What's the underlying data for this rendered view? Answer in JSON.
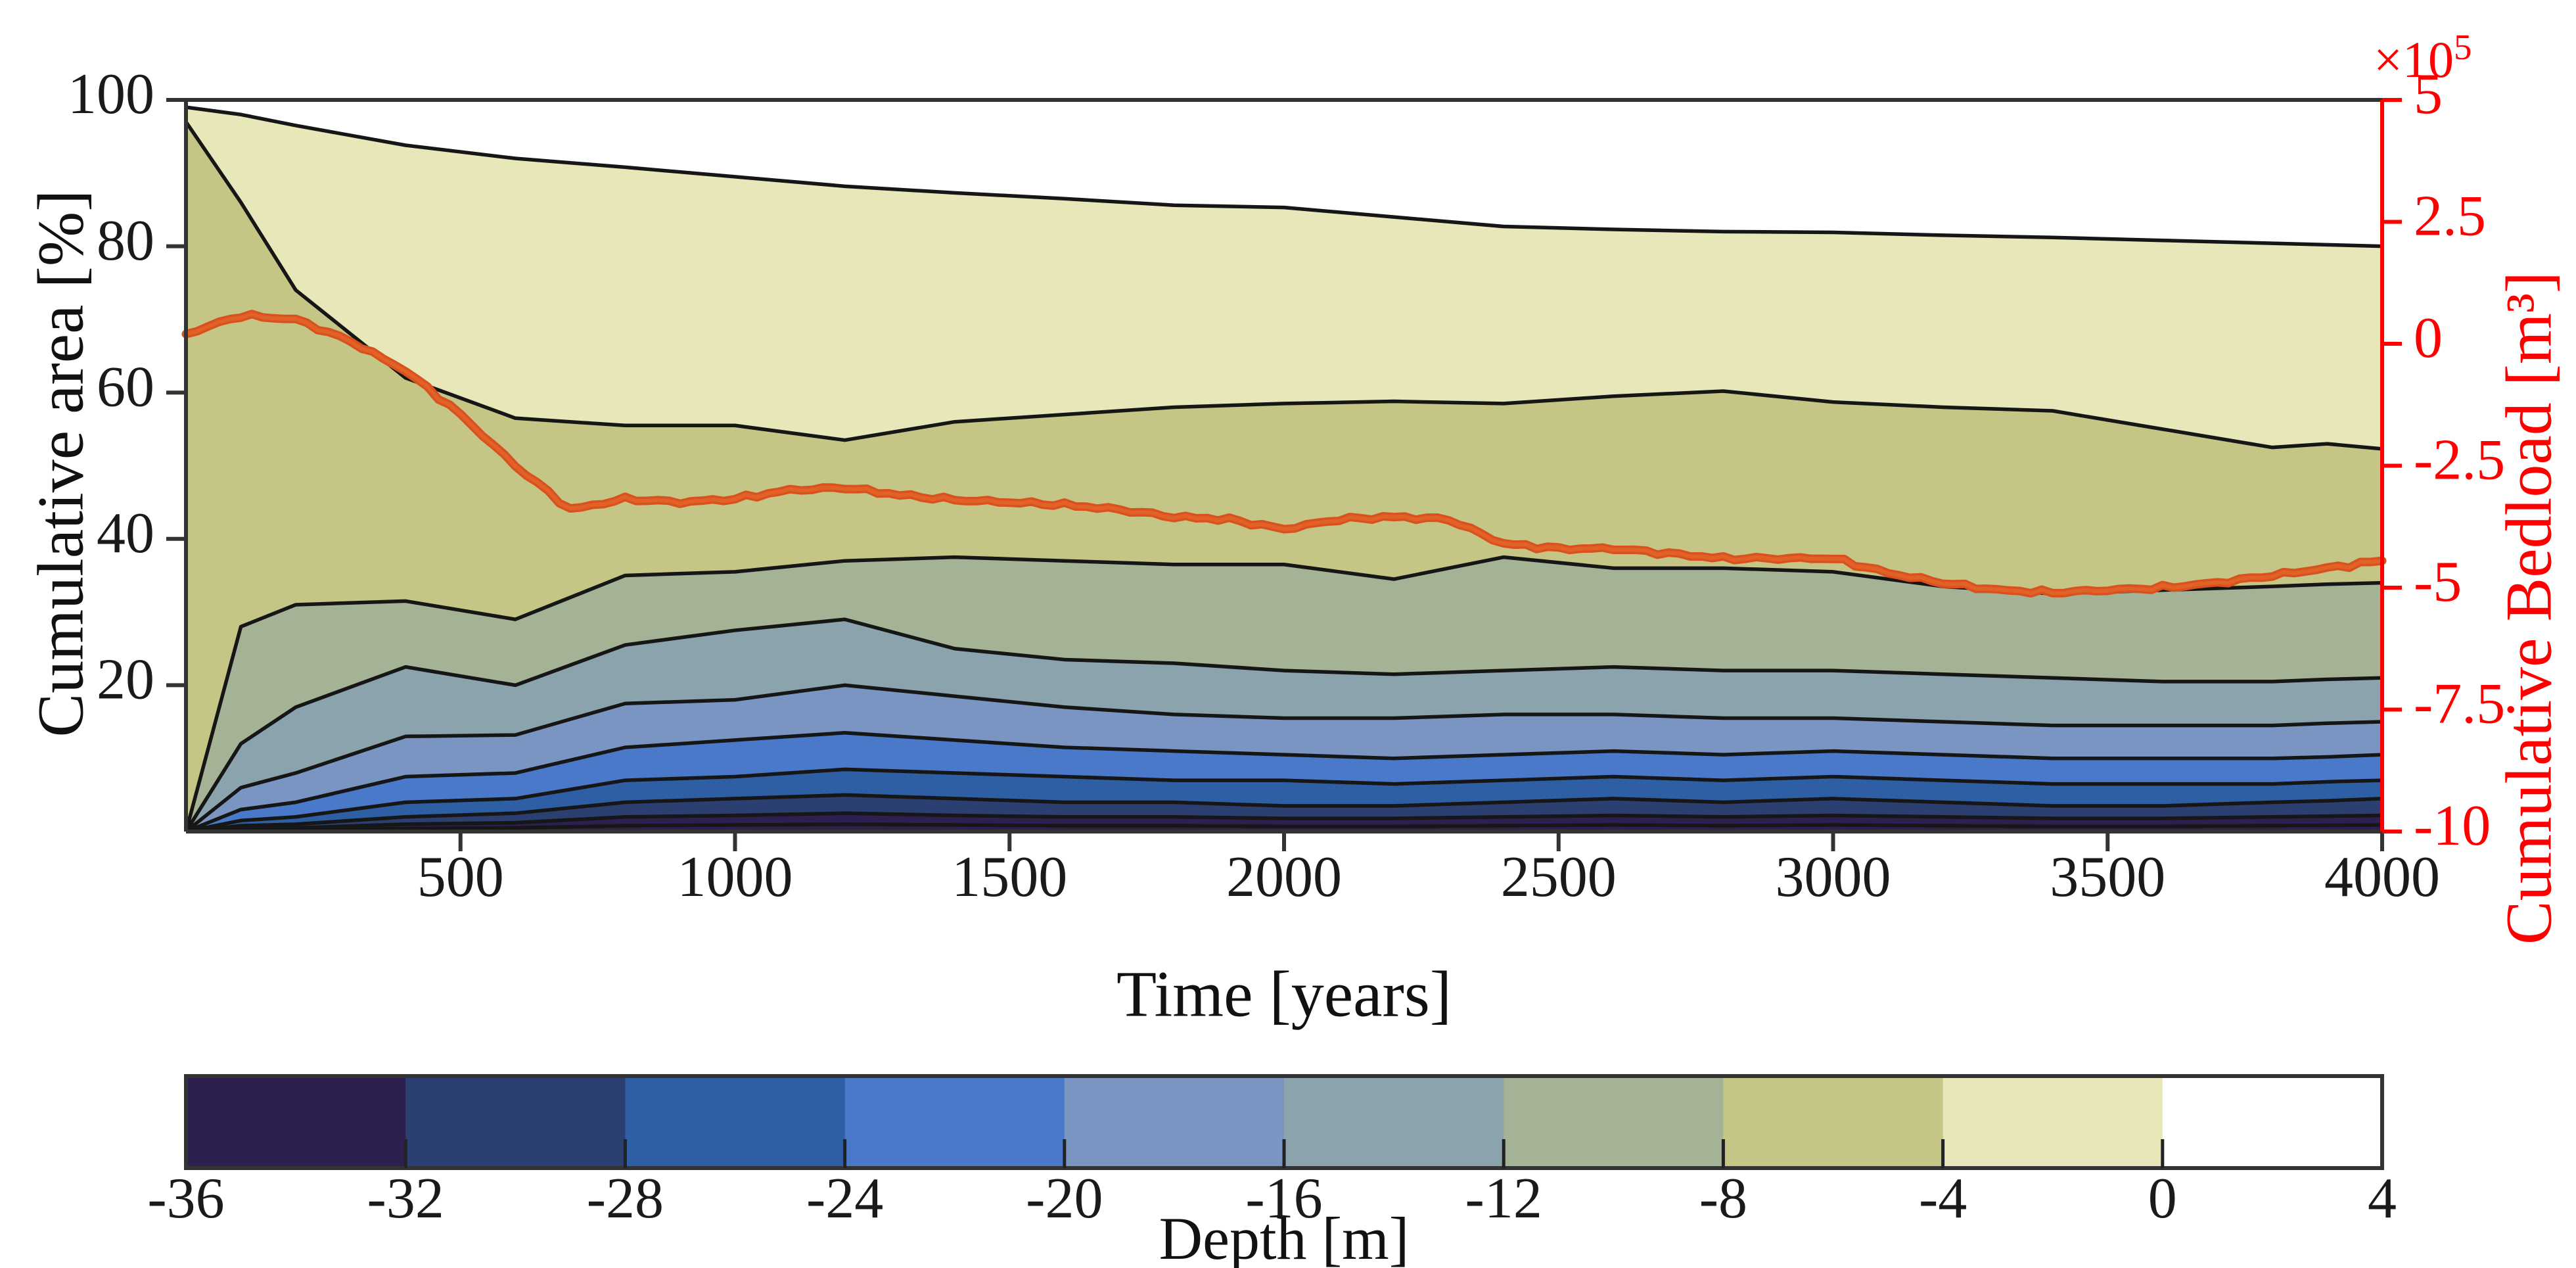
{
  "chart_data": {
    "type": "filled-contour-with-line",
    "title": "",
    "x_axis": {
      "label": "Time [years]",
      "min": 0,
      "max": 4000,
      "ticks": [
        500,
        1000,
        1500,
        2000,
        2500,
        3000,
        3500,
        4000
      ]
    },
    "y_left": {
      "label": "Cumulative area [%]",
      "min": 0,
      "max": 100,
      "ticks": [
        20,
        40,
        60,
        80,
        100
      ],
      "color": "#111111"
    },
    "y_right": {
      "label": "Cumulative Bedload [m³]",
      "multiplier_base": "×10",
      "multiplier_exponent": "5",
      "min": -10,
      "max": 5,
      "ticks": [
        5,
        2.5,
        0,
        -2.5,
        -5,
        -7.5,
        -10
      ],
      "color": "#ff0000"
    },
    "contour": {
      "comment": "cumulative area [%] occupied by lakebed deeper than each depth level, vs time [years]",
      "times": [
        0,
        100,
        200,
        400,
        600,
        800,
        1000,
        1200,
        1400,
        1600,
        1800,
        2000,
        2200,
        2400,
        2600,
        2800,
        3000,
        3200,
        3400,
        3600,
        3800,
        3900,
        4000
      ],
      "levels": [
        {
          "depth": 0,
          "values": [
            99,
            98,
            96.5,
            93.8,
            92,
            90.8,
            89.5,
            88.2,
            87.3,
            86.5,
            85.6,
            85.3,
            84,
            82.7,
            82.3,
            82,
            81.9,
            81.5,
            81.2,
            80.8,
            80.4,
            80.2,
            80
          ]
        },
        {
          "depth": -4,
          "values": [
            97,
            86,
            74,
            62,
            56.5,
            55.5,
            55.5,
            53.5,
            56,
            57,
            58,
            58.5,
            58.8,
            58.5,
            59.5,
            60.2,
            58.7,
            58,
            57.5,
            55,
            52.5,
            53,
            52.3
          ]
        },
        {
          "depth": -8,
          "values": [
            0,
            28,
            31,
            31.5,
            29,
            35,
            35.5,
            37,
            37.5,
            37,
            36.5,
            36.5,
            34.5,
            37.5,
            36,
            36,
            35.5,
            33.5,
            32.5,
            33,
            33.5,
            33.8,
            34
          ]
        },
        {
          "depth": -12,
          "values": [
            0,
            12,
            17,
            22.5,
            20,
            25.5,
            27.5,
            29,
            25,
            23.5,
            23,
            22,
            21.5,
            22,
            22.5,
            22,
            22,
            21.5,
            21,
            20.5,
            20.5,
            20.8,
            21
          ]
        },
        {
          "depth": -16,
          "values": [
            0,
            6,
            8,
            13,
            13.2,
            17.5,
            18,
            20,
            18.5,
            17,
            16,
            15.5,
            15.5,
            16,
            16,
            15.5,
            15.5,
            15,
            14.5,
            14.5,
            14.5,
            14.8,
            15
          ]
        },
        {
          "depth": -20,
          "values": [
            0,
            3,
            4,
            7.5,
            8,
            11.5,
            12.5,
            13.5,
            12.5,
            11.5,
            11,
            10.5,
            10,
            10.5,
            11,
            10.5,
            11,
            10.5,
            10,
            10,
            10,
            10.2,
            10.5
          ]
        },
        {
          "depth": -24,
          "values": [
            0,
            1.5,
            2,
            4,
            4.5,
            7,
            7.5,
            8.5,
            8,
            7.5,
            7,
            7,
            6.5,
            7,
            7.5,
            7,
            7.5,
            7,
            6.5,
            6.5,
            6.5,
            6.8,
            7
          ]
        },
        {
          "depth": -28,
          "values": [
            0,
            0.8,
            1,
            2,
            2.5,
            4,
            4.5,
            5,
            4.5,
            4,
            4,
            3.5,
            3.5,
            4,
            4.5,
            4,
            4.5,
            4,
            3.5,
            3.5,
            4,
            4.2,
            4.5
          ]
        },
        {
          "depth": -32,
          "values": [
            0,
            0.4,
            0.5,
            1,
            1.2,
            2,
            2.2,
            2.5,
            2.2,
            2,
            2,
            1.8,
            1.8,
            2,
            2.2,
            2,
            2.2,
            2,
            1.8,
            1.8,
            2,
            2.1,
            2.2
          ]
        },
        {
          "depth": -36,
          "values": [
            0,
            0.15,
            0.2,
            0.4,
            0.5,
            0.8,
            0.9,
            1,
            0.9,
            0.8,
            0.8,
            0.7,
            0.7,
            0.8,
            0.9,
            0.8,
            0.9,
            0.8,
            0.7,
            0.7,
            0.8,
            0.85,
            0.9
          ]
        }
      ],
      "line_color": "#161616"
    },
    "bedload_series": {
      "name": "Cumulative Bedload",
      "units": "×10⁵ m³",
      "color": "#d9511e",
      "times": [
        0,
        100,
        200,
        300,
        400,
        500,
        600,
        700,
        800,
        900,
        1000,
        1100,
        1200,
        1300,
        1400,
        1500,
        1600,
        1700,
        1800,
        1900,
        2000,
        2100,
        2200,
        2300,
        2400,
        2500,
        2600,
        2700,
        2800,
        2900,
        3000,
        3100,
        3200,
        3300,
        3400,
        3500,
        3600,
        3700,
        3800,
        3900,
        4000
      ],
      "values": [
        0.2,
        0.58,
        0.5,
        0.05,
        -0.55,
        -1.45,
        -2.5,
        -3.4,
        -3.18,
        -3.25,
        -3.18,
        -3.0,
        -2.95,
        -3.1,
        -3.2,
        -3.25,
        -3.3,
        -3.4,
        -3.55,
        -3.6,
        -3.8,
        -3.6,
        -3.55,
        -3.6,
        -4.1,
        -4.2,
        -4.2,
        -4.3,
        -4.4,
        -4.4,
        -4.4,
        -4.7,
        -4.9,
        -5.05,
        -5.1,
        -5.05,
        -5.0,
        -4.9,
        -4.75,
        -4.6,
        -4.45
      ]
    },
    "colorbar": {
      "label": "Depth [m]",
      "tick_values": [
        -36,
        -32,
        -28,
        -24,
        -20,
        -16,
        -12,
        -8,
        -4,
        0,
        4
      ],
      "segment_edges": [
        -36,
        -32,
        -28,
        -24,
        -20,
        -16,
        -12,
        -8,
        -4,
        0,
        4
      ],
      "segment_colors": [
        "#2e1f51",
        "#2b4070",
        "#2e5fa4",
        "#4b79ca",
        "#7b95c3",
        "#8ba3ac",
        "#a4b295",
        "#c5c585",
        "#e7e7ba",
        "#ffffff"
      ]
    },
    "legend_position": "none",
    "grid": false
  }
}
